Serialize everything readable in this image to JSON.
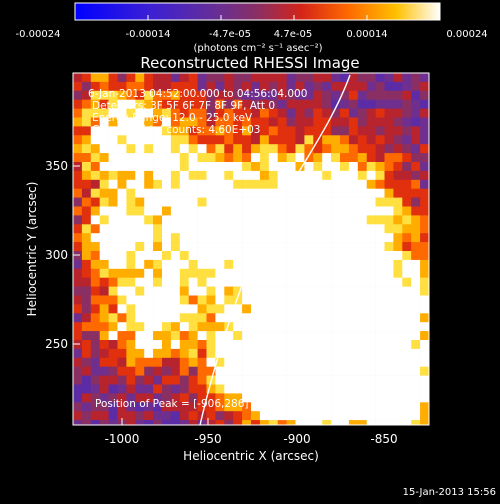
{
  "colorbar": {
    "ticks": [
      "-0.00024",
      "-0.00014",
      "-4.7e-05",
      "4.7e-05",
      "0.00014",
      "0.00024"
    ],
    "unit_label": "(photons cm⁻² s⁻¹ asec⁻²)",
    "colors": [
      "#0000ff",
      "#3a1fd6",
      "#5b2ca6",
      "#6f2f8f",
      "#8a2f63",
      "#b8242e",
      "#e0300e",
      "#ff6a00",
      "#ffae00",
      "#ffe040",
      "#ffffff"
    ]
  },
  "title": "Reconstructed RHESSI Image",
  "info": {
    "time_range": "6-Jan-2013 04:52:00.000 to 04:56:04.000",
    "detectors": "Detectors: 3F 5F 6F 7F 8F 9F, Att 0",
    "energy": "Energy Range: 12.0 - 25.0 keV",
    "clean": "Clean     Total counts: 4.60E+03"
  },
  "peak_label": "Position of Peak = [-906,286]",
  "axes": {
    "xlabel": "Heliocentric X (arcsec)",
    "ylabel": "Heliocentric Y (arcsec)",
    "xticks": [
      "-1000",
      "-950",
      "-900",
      "-850"
    ],
    "yticks": [
      "250",
      "300",
      "350"
    ],
    "xlim": [
      -1023,
      -827
    ],
    "ylim": [
      204,
      400
    ]
  },
  "footer_date": "15-Jan-2013 15:56"
}
